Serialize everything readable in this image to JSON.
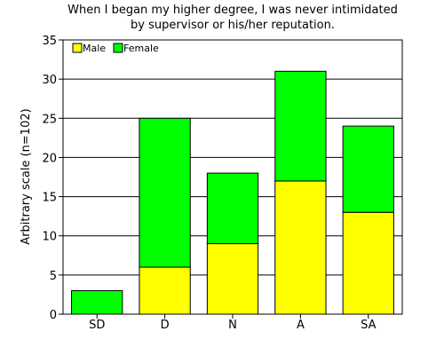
{
  "chart_data": {
    "type": "bar",
    "stacked": true,
    "title_lines": [
      "When I began my higher degree, I was never intimidated",
      "by supervisor or his/her reputation."
    ],
    "xlabel": "",
    "ylabel": "Arbitrary scale (n=102)",
    "ylim": [
      0,
      35
    ],
    "yticks": [
      0,
      5,
      10,
      15,
      20,
      25,
      30,
      35
    ],
    "grid": true,
    "legend": "top-left",
    "categories": [
      "SD",
      "D",
      "N",
      "A",
      "SA"
    ],
    "series": [
      {
        "name": "Male",
        "color": "#ffff00",
        "values": [
          0,
          6,
          9,
          17,
          13
        ]
      },
      {
        "name": "Female",
        "color": "#00ff00",
        "values": [
          3,
          19,
          9,
          14,
          11
        ]
      }
    ]
  }
}
